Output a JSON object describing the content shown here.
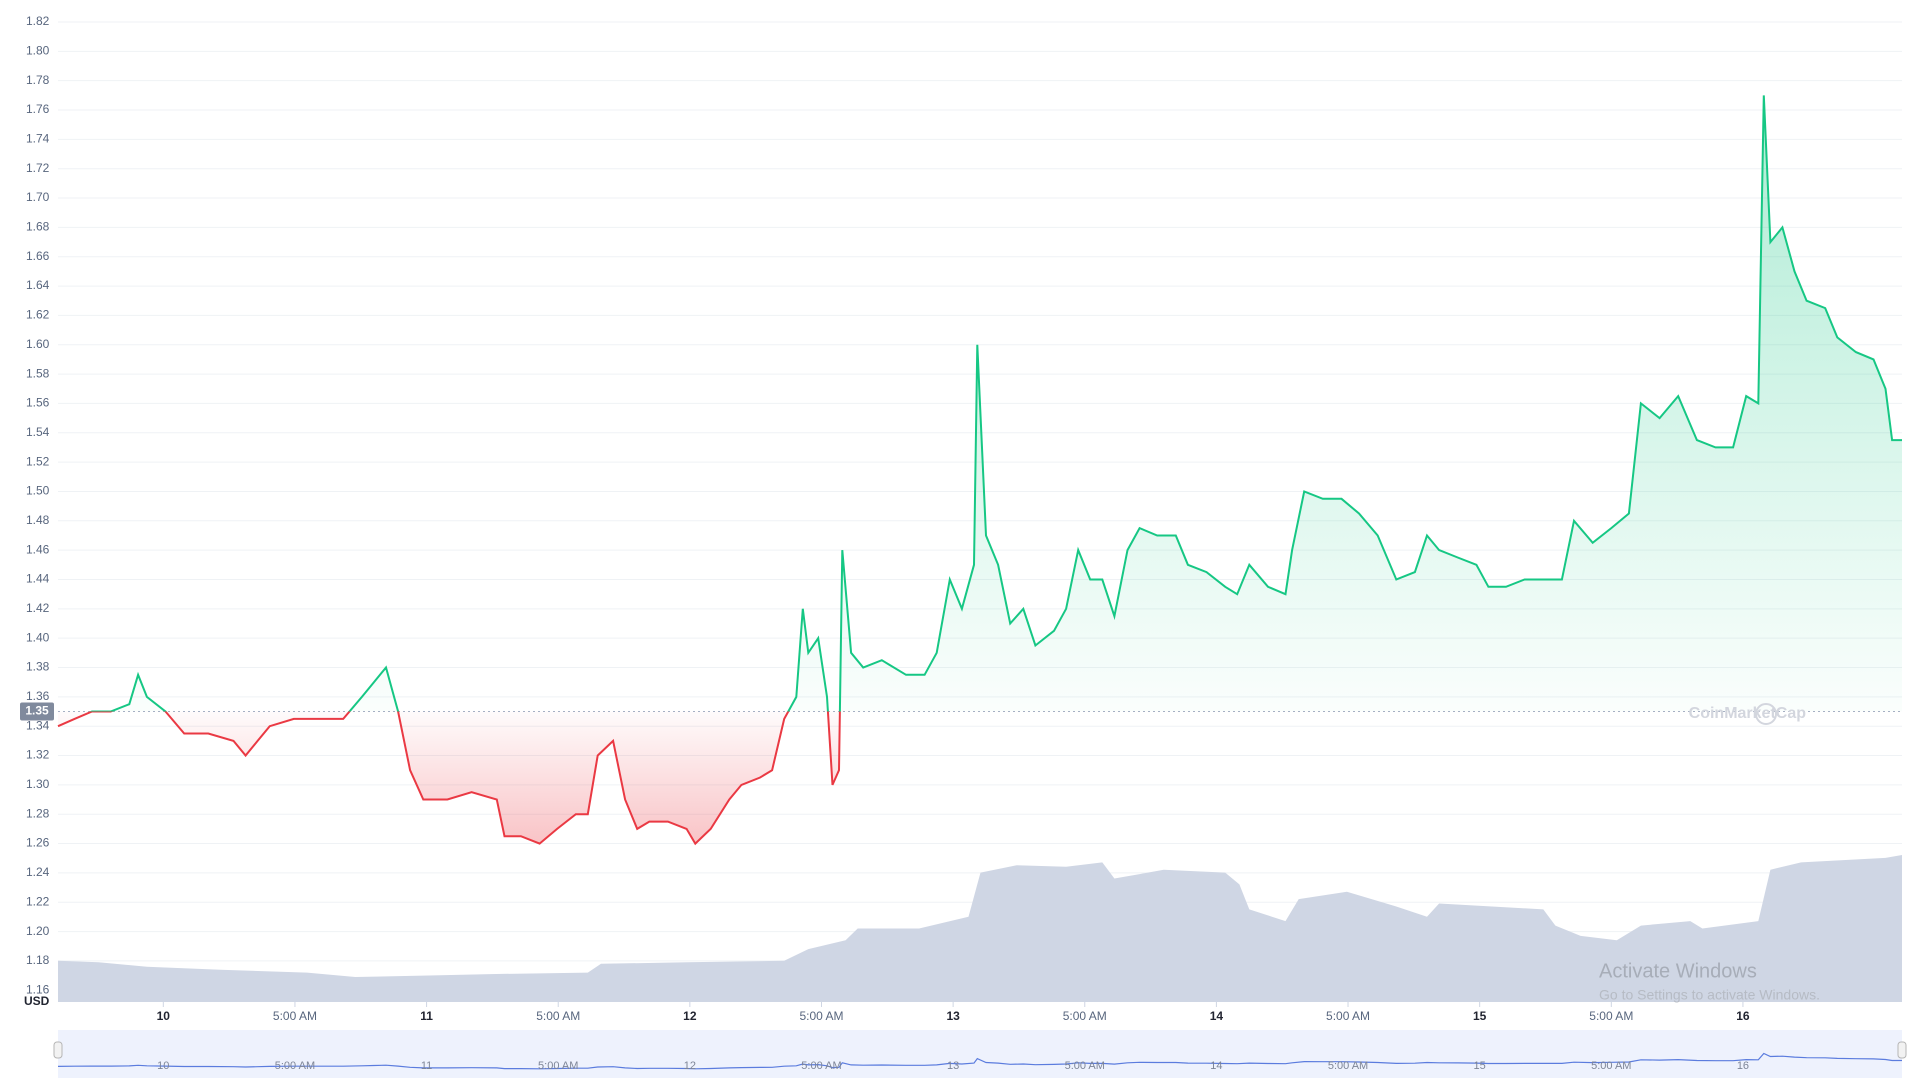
{
  "chart_data": {
    "type": "line",
    "currency": "USD",
    "baseline": 1.35,
    "watermark": "CoinMarketCap",
    "overlay_title": "Activate Windows",
    "overlay_subtitle": "Go to Settings to activate Windows.",
    "up_color": "#16c784",
    "down_color": "#ea3943",
    "grid": true,
    "x": [
      -9.6,
      -8.1,
      -6.5,
      -4.8,
      -3.1,
      -2.3,
      -1.5,
      0.2,
      1.9,
      4.1,
      6.4,
      7.5,
      8.6,
      9.7,
      11.9,
      14.2,
      16.4,
      18.1,
      19.2,
      20.3,
      21.4,
      22.5,
      23.7,
      25.9,
      28.1,
      30.4,
      31.1,
      32.6,
      34.3,
      35.9,
      37.6,
      38.7,
      39.6,
      41.0,
      42.1,
      43.2,
      44.3,
      46.0,
      47.7,
      48.5,
      49.9,
      51.6,
      52.7,
      54.4,
      55.5,
      56.6,
      57.7,
      58.3,
      58.8,
      59.7,
      60.5,
      61.0,
      61.6,
      61.9,
      62.7,
      63.8,
      65.5,
      67.7,
      69.4,
      70.5,
      71.7,
      72.8,
      73.9,
      74.2,
      75.0,
      76.1,
      77.2,
      78.4,
      79.5,
      81.2,
      82.3,
      83.4,
      84.5,
      85.6,
      86.7,
      87.9,
      89.0,
      90.6,
      92.3,
      93.4,
      95.1,
      96.8,
      97.9,
      99.0,
      100.7,
      102.3,
      102.9,
      104.0,
      105.7,
      107.4,
      109.0,
      110.7,
      112.4,
      114.1,
      115.2,
      116.3,
      118.0,
      119.7,
      120.8,
      122.4,
      124.1,
      125.8,
      127.5,
      128.6,
      130.3,
      132.0,
      133.6,
      134.7,
      136.4,
      138.1,
      139.8,
      141.5,
      143.1,
      144.3,
      145.4,
      145.9,
      146.5,
      147.6,
      148.7,
      149.8,
      151.5,
      152.6,
      154.3,
      155.9,
      157.0,
      157.6,
      158.5
    ],
    "values": [
      1.34,
      1.345,
      1.35,
      1.35,
      1.355,
      1.375,
      1.36,
      1.35,
      1.335,
      1.335,
      1.33,
      1.32,
      1.33,
      1.34,
      1.345,
      1.345,
      1.345,
      1.36,
      1.37,
      1.38,
      1.35,
      1.31,
      1.29,
      1.29,
      1.295,
      1.29,
      1.265,
      1.265,
      1.26,
      1.27,
      1.28,
      1.28,
      1.32,
      1.33,
      1.29,
      1.27,
      1.275,
      1.275,
      1.27,
      1.26,
      1.27,
      1.29,
      1.3,
      1.305,
      1.31,
      1.345,
      1.36,
      1.42,
      1.39,
      1.4,
      1.36,
      1.3,
      1.31,
      1.46,
      1.39,
      1.38,
      1.385,
      1.375,
      1.375,
      1.39,
      1.44,
      1.42,
      1.45,
      1.6,
      1.47,
      1.45,
      1.41,
      1.42,
      1.395,
      1.405,
      1.42,
      1.46,
      1.44,
      1.44,
      1.415,
      1.46,
      1.475,
      1.47,
      1.47,
      1.45,
      1.445,
      1.435,
      1.43,
      1.45,
      1.435,
      1.43,
      1.46,
      1.5,
      1.495,
      1.495,
      1.485,
      1.47,
      1.44,
      1.445,
      1.47,
      1.46,
      1.455,
      1.45,
      1.435,
      1.435,
      1.44,
      1.44,
      1.44,
      1.48,
      1.465,
      1.475,
      1.485,
      1.56,
      1.55,
      1.565,
      1.535,
      1.53,
      1.53,
      1.565,
      1.56,
      1.77,
      1.67,
      1.68,
      1.65,
      1.63,
      1.625,
      1.605,
      1.595,
      1.59,
      1.57,
      1.535,
      1.535
    ],
    "xlim": [
      -9.6,
      158.5
    ],
    "xticks": [
      {
        "value": 0,
        "label": "10"
      },
      {
        "value": 12,
        "label": "5:00 AM"
      },
      {
        "value": 24,
        "label": "11"
      },
      {
        "value": 36,
        "label": "5:00 AM"
      },
      {
        "value": 48,
        "label": "12"
      },
      {
        "value": 60,
        "label": "5:00 AM"
      },
      {
        "value": 72,
        "label": "13"
      },
      {
        "value": 84,
        "label": "5:00 AM"
      },
      {
        "value": 96,
        "label": "14"
      },
      {
        "value": 108,
        "label": "5:00 AM"
      },
      {
        "value": 120,
        "label": "15"
      },
      {
        "value": 132,
        "label": "5:00 AM"
      },
      {
        "value": 144,
        "label": "16"
      }
    ],
    "ylim": [
      1.152,
      1.82
    ],
    "yticks": [
      1.16,
      1.18,
      {
        "value": 1.2,
        "label": "1.20"
      },
      1.22,
      1.24,
      1.26,
      1.28,
      {
        "value": 1.3,
        "label": "1.30"
      },
      1.32,
      1.34,
      1.36,
      1.38,
      {
        "value": 1.4,
        "label": "1.40"
      },
      1.42,
      1.44,
      1.46,
      1.48,
      {
        "value": 1.5,
        "label": "1.50"
      },
      1.52,
      1.54,
      1.56,
      1.58,
      {
        "value": 1.6,
        "label": "1.60"
      },
      1.62,
      1.64,
      1.66,
      1.68,
      {
        "value": 1.7,
        "label": "1.70"
      },
      1.72,
      1.74,
      1.76,
      1.78,
      {
        "value": 1.8,
        "label": "1.80"
      },
      1.82
    ],
    "volume": {
      "color": "#cfd6e4",
      "ylim": [
        0,
        100
      ],
      "x": [
        -9.6,
        -5.9,
        -1.5,
        5.2,
        13.1,
        17.5,
        24.2,
        29.8,
        38.7,
        39.9,
        47.7,
        56.6,
        58.8,
        62.2,
        63.3,
        68.9,
        73.4,
        74.5,
        77.8,
        82.3,
        85.6,
        86.7,
        89.0,
        91.2,
        96.8,
        98.1,
        99.0,
        102.3,
        103.5,
        107.9,
        112.4,
        115.2,
        116.3,
        125.8,
        126.9,
        129.2,
        132.5,
        134.7,
        139.2,
        140.3,
        145.4,
        146.5,
        149.3,
        157.0,
        158.5
      ],
      "values": [
        28,
        27,
        24,
        22,
        20,
        17,
        18,
        19,
        20,
        26,
        27,
        28,
        36,
        42,
        50,
        50,
        58,
        88,
        93,
        92,
        95,
        84,
        87,
        90,
        88,
        80,
        63,
        55,
        70,
        75,
        65,
        58,
        67,
        63,
        52,
        45,
        42,
        52,
        55,
        50,
        55,
        90,
        95,
        98,
        100
      ]
    },
    "navigator": {
      "color": "#5b7cde",
      "background": "#eef2fd"
    }
  }
}
